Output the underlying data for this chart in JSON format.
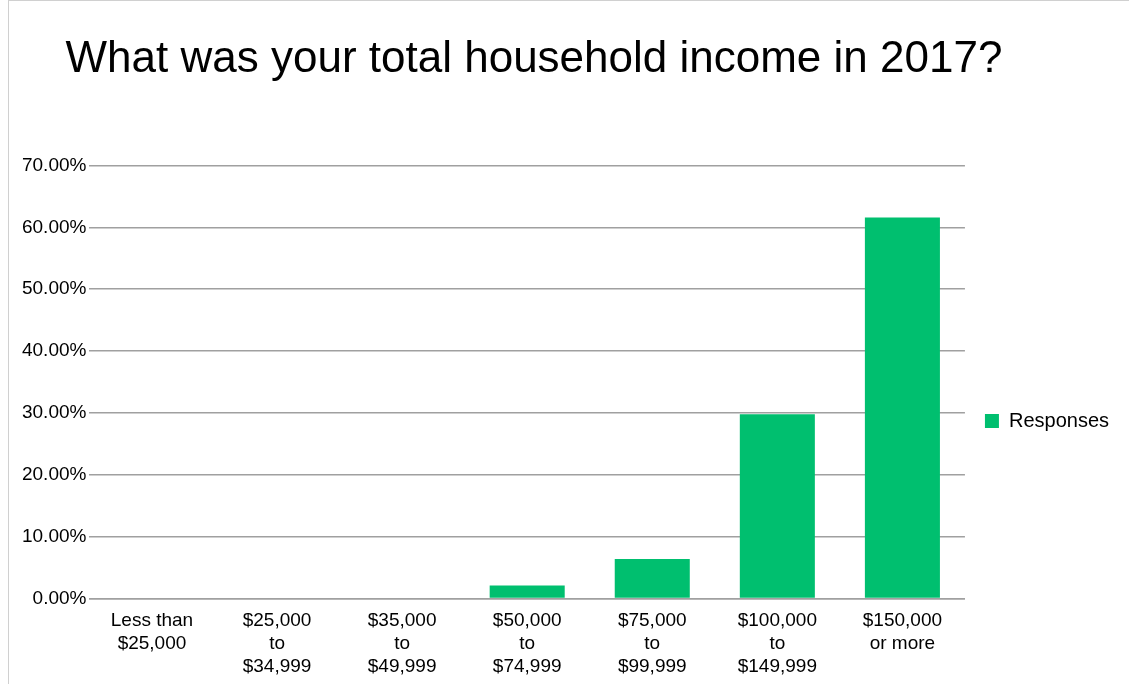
{
  "chart_data": {
    "type": "bar",
    "title": "What was your total household income in 2017?",
    "categories": [
      "Less than $25,000",
      "$25,000 to $34,999",
      "$35,000 to $49,999",
      "$50,000 to $74,999",
      "$75,000 to $99,999",
      "$100,000 to $149,999",
      "$150,000 or more"
    ],
    "series": [
      {
        "name": "Responses",
        "color": "#00bf6f",
        "values": [
          0,
          0,
          0,
          2.1,
          6.4,
          29.8,
          61.6
        ]
      }
    ],
    "ylim": [
      0,
      70
    ],
    "yticks": [
      {
        "value": 0,
        "label": "0.00%"
      },
      {
        "value": 10,
        "label": "10.00%"
      },
      {
        "value": 20,
        "label": "20.00%"
      },
      {
        "value": 30,
        "label": "30.00%"
      },
      {
        "value": 40,
        "label": "40.00%"
      },
      {
        "value": 50,
        "label": "50.00%"
      },
      {
        "value": 60,
        "label": "60.00%"
      },
      {
        "value": 70,
        "label": "70.00%"
      }
    ],
    "grid": "y",
    "legend": "right"
  }
}
